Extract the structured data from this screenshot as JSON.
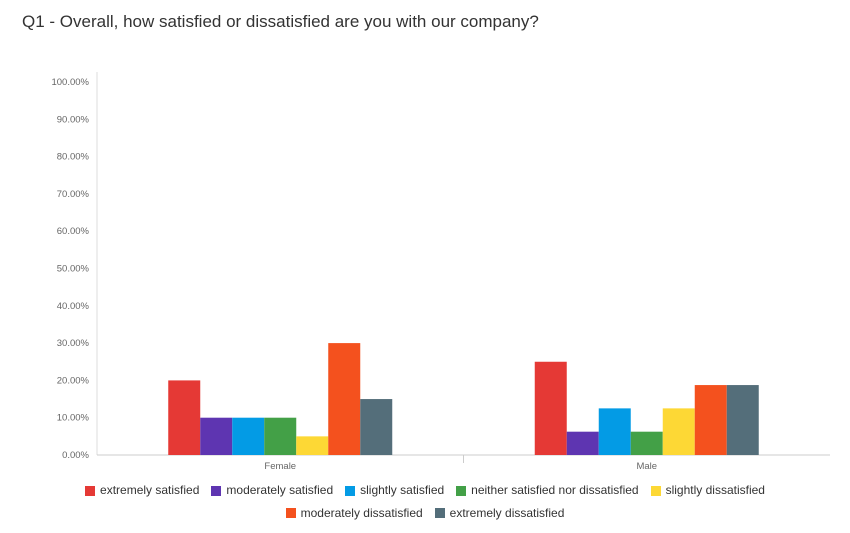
{
  "chart_data": {
    "type": "bar",
    "title": "Q1 - Overall, how satisfied or dissatisfied are you with our company?",
    "categories": [
      "Female",
      "Male"
    ],
    "ylim": [
      0,
      100
    ],
    "yticks": [
      "0.00%",
      "10.00%",
      "20.00%",
      "30.00%",
      "40.00%",
      "50.00%",
      "60.00%",
      "70.00%",
      "80.00%",
      "90.00%",
      "100.00%"
    ],
    "grid": false,
    "legend_position": "bottom",
    "series": [
      {
        "name": "extremely satisfied",
        "color": "#e53935",
        "values": [
          20,
          25
        ]
      },
      {
        "name": "moderately satisfied",
        "color": "#5e35b1",
        "values": [
          10,
          6.25
        ]
      },
      {
        "name": "slightly satisfied",
        "color": "#039be5",
        "values": [
          10,
          12.5
        ]
      },
      {
        "name": "neither satisfied nor dissatisfied",
        "color": "#43a047",
        "values": [
          10,
          6.25
        ]
      },
      {
        "name": "slightly dissatisfied",
        "color": "#fdd835",
        "values": [
          5,
          12.5
        ]
      },
      {
        "name": "moderately dissatisfied",
        "color": "#f4511e",
        "values": [
          30,
          18.75
        ]
      },
      {
        "name": "extremely dissatisfied",
        "color": "#546e7a",
        "values": [
          15,
          18.75
        ]
      }
    ]
  }
}
